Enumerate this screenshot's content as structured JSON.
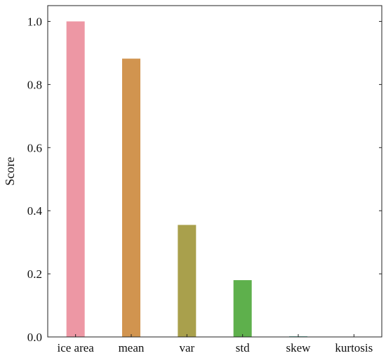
{
  "chart_data": {
    "type": "bar",
    "title": "",
    "xlabel": "",
    "ylabel": "Score",
    "categories": [
      "ice area",
      "mean",
      "var",
      "std",
      "skew",
      "kurtosis"
    ],
    "values": [
      1.0,
      0.882,
      0.355,
      0.18,
      0.002,
      0.0
    ],
    "colors": [
      "#ED97A4",
      "#D1944F",
      "#A9A04C",
      "#5EB04C",
      "#55B4A0",
      "#5FA9CF"
    ],
    "ylim": [
      0,
      1.05
    ],
    "yticks": [
      0.0,
      0.2,
      0.4,
      0.6,
      0.8,
      1.0
    ],
    "ytick_labels": [
      "0.0",
      "0.2",
      "0.4",
      "0.6",
      "0.8",
      "1.0"
    ],
    "grid": false,
    "legend": "none"
  }
}
